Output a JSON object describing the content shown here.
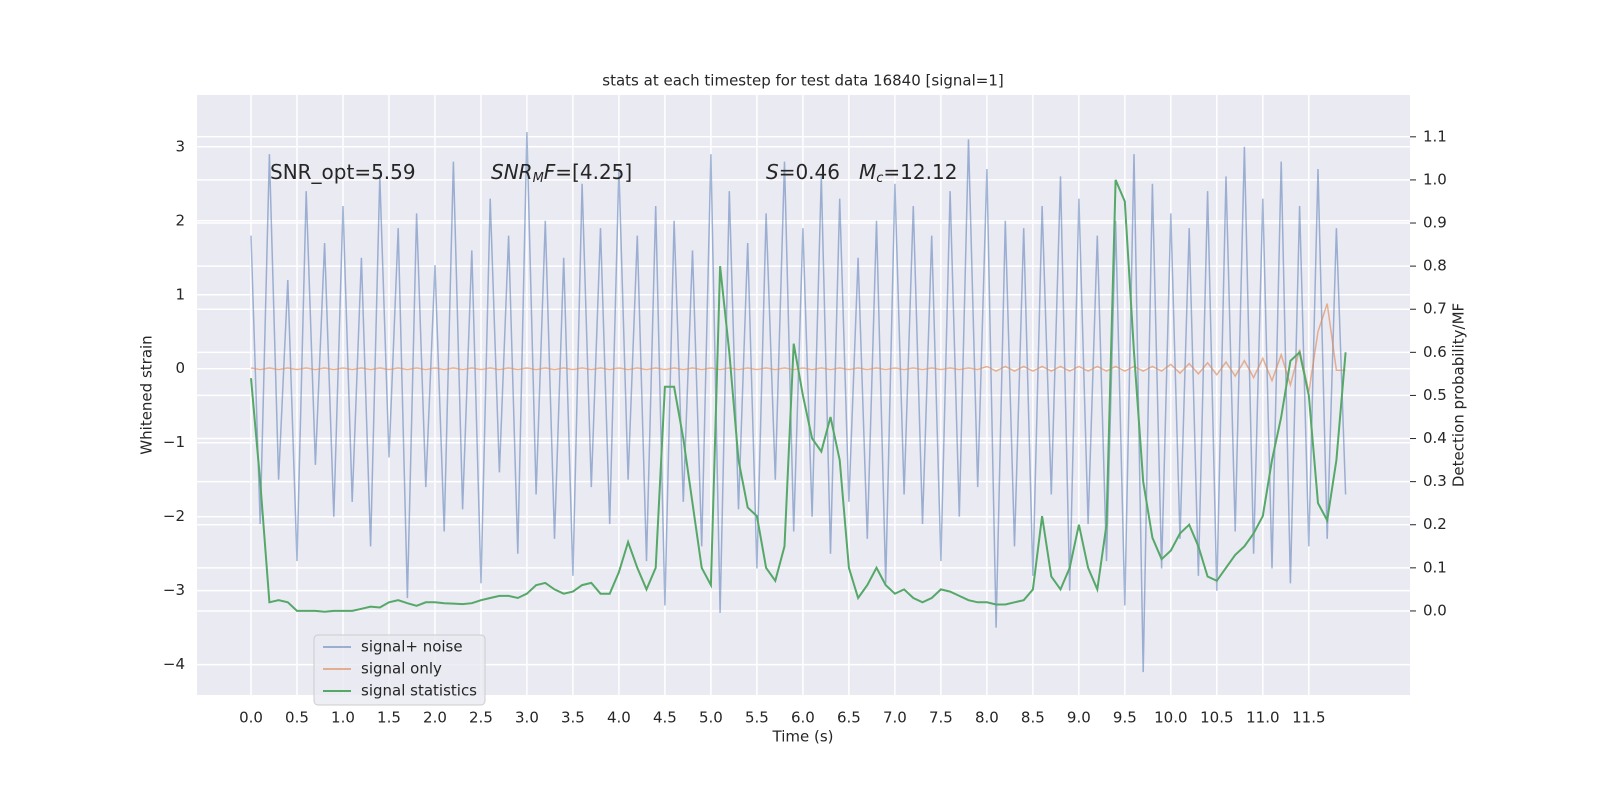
{
  "chart_data": {
    "type": "line",
    "title": "stats at each timestep for test data 16840 [signal=1]",
    "xlabel": "Time (s)",
    "ylabel": "Whitened strain",
    "y2label": "Detection probability/MF",
    "grid": true,
    "legend_loc": "lower left",
    "xlim": [
      -0.587,
      12.6
    ],
    "ylim": [
      -4.41,
      3.7
    ],
    "y2lim": [
      -0.195,
      1.197
    ],
    "xticks": [
      {
        "value": 0,
        "label": "0.0"
      },
      0.5,
      {
        "value": 1,
        "label": "1.0"
      },
      1.5,
      {
        "value": 2,
        "label": "2.0"
      },
      2.5,
      {
        "value": 3,
        "label": "3.0"
      },
      3.5,
      {
        "value": 4,
        "label": "4.0"
      },
      4.5,
      {
        "value": 5,
        "label": "5.0"
      },
      5.5,
      {
        "value": 6,
        "label": "6.0"
      },
      6.5,
      {
        "value": 7,
        "label": "7.0"
      },
      7.5,
      {
        "value": 8,
        "label": "8.0"
      },
      8.5,
      {
        "value": 9,
        "label": "9.0"
      },
      9.5,
      {
        "value": 10,
        "label": "10.0"
      },
      10.5,
      {
        "value": 11,
        "label": "11.0"
      },
      11.5
    ],
    "yticks": [
      {
        "value": -4,
        "label": "−4"
      },
      {
        "value": -3,
        "label": "−3"
      },
      {
        "value": -2,
        "label": "−2"
      },
      {
        "value": -1,
        "label": "−1"
      },
      0,
      1,
      2,
      3
    ],
    "y2ticks": [
      {
        "value": 0,
        "label": "0.0"
      },
      0.1,
      0.2,
      0.3,
      0.4,
      0.5,
      0.6,
      0.7,
      0.8,
      0.9,
      {
        "value": 1,
        "label": "1.0"
      },
      1.1
    ],
    "annotations": [
      [
        {
          "text": "SNR_opt=5.59",
          "style": "normal"
        }
      ],
      [
        {
          "text": "SNR",
          "style": "italic"
        },
        {
          "text": "M",
          "style": "italic-sub"
        },
        {
          "text": "F",
          "style": "italic"
        },
        {
          "text": "=[4.25]",
          "style": "normal"
        }
      ],
      [
        {
          "text": "S",
          "style": "italic"
        },
        {
          "text": "=0.46",
          "style": "normal"
        }
      ],
      [
        {
          "text": "M",
          "style": "italic"
        },
        {
          "text": "c",
          "style": "italic-sub"
        },
        {
          "text": "=12.12",
          "style": "normal"
        }
      ]
    ],
    "x": [
      0.0,
      0.1,
      0.2,
      0.3,
      0.4,
      0.5,
      0.6,
      0.7,
      0.8,
      0.9,
      1.0,
      1.1,
      1.2,
      1.3,
      1.4,
      1.5,
      1.6,
      1.7,
      1.8,
      1.9,
      2.0,
      2.1,
      2.2,
      2.3,
      2.4,
      2.5,
      2.6,
      2.7,
      2.8,
      2.9,
      3.0,
      3.1,
      3.2,
      3.3,
      3.4,
      3.5,
      3.6,
      3.7,
      3.8,
      3.9,
      4.0,
      4.1,
      4.2,
      4.3,
      4.4,
      4.5,
      4.6,
      4.7,
      4.8,
      4.9,
      5.0,
      5.1,
      5.2,
      5.3,
      5.4,
      5.5,
      5.6,
      5.7,
      5.8,
      5.9,
      6.0,
      6.1,
      6.2,
      6.3,
      6.4,
      6.5,
      6.6,
      6.7,
      6.8,
      6.9,
      7.0,
      7.1,
      7.2,
      7.3,
      7.4,
      7.5,
      7.6,
      7.7,
      7.8,
      7.9,
      8.0,
      8.1,
      8.2,
      8.3,
      8.4,
      8.5,
      8.6,
      8.7,
      8.8,
      8.9,
      9.0,
      9.1,
      9.2,
      9.3,
      9.4,
      9.5,
      9.6,
      9.7,
      9.8,
      9.9,
      10.0,
      10.1,
      10.2,
      10.3,
      10.4,
      10.5,
      10.6,
      10.7,
      10.8,
      10.9,
      11.0,
      11.1,
      11.2,
      11.3,
      11.4,
      11.5,
      11.6,
      11.7,
      11.8,
      11.9
    ],
    "series": [
      {
        "name": "signal+ noise",
        "color": "#4c72b0",
        "opacity": 0.5,
        "axis": "y",
        "values": [
          1.8,
          -2.1,
          2.9,
          -1.5,
          1.2,
          -2.6,
          2.4,
          -1.3,
          1.7,
          -2.0,
          2.2,
          -1.8,
          1.5,
          -2.4,
          2.6,
          -1.2,
          1.9,
          -3.1,
          2.1,
          -1.6,
          1.4,
          -2.2,
          2.8,
          -1.9,
          1.6,
          -2.9,
          2.3,
          -1.4,
          1.8,
          -2.5,
          3.2,
          -1.7,
          2.0,
          -2.3,
          1.5,
          -2.8,
          2.5,
          -1.6,
          1.9,
          -2.1,
          2.7,
          -1.5,
          1.8,
          -2.6,
          2.2,
          -3.2,
          2.0,
          -1.8,
          1.6,
          -2.4,
          2.9,
          -3.3,
          2.4,
          -1.9,
          1.7,
          -2.7,
          2.1,
          -1.5,
          2.8,
          -2.2,
          1.9,
          -2.0,
          2.6,
          -2.5,
          2.3,
          -1.8,
          1.5,
          -2.3,
          2.0,
          -2.9,
          2.5,
          -1.7,
          2.2,
          -2.1,
          1.8,
          -2.6,
          2.4,
          -2.0,
          3.1,
          -1.6,
          2.7,
          -3.5,
          2.0,
          -2.4,
          1.9,
          -2.8,
          2.2,
          -1.7,
          2.6,
          -3.0,
          2.3,
          -2.1,
          1.8,
          -2.6,
          2.0,
          -3.2,
          2.9,
          -4.1,
          2.5,
          -2.7,
          2.1,
          -2.3,
          1.9,
          -2.8,
          2.4,
          -3.0,
          2.6,
          -2.2,
          3.0,
          -2.5,
          2.3,
          -2.7,
          2.8,
          -2.9,
          2.2,
          -2.4,
          2.7,
          -2.3,
          1.9,
          -1.7
        ]
      },
      {
        "name": "signal only",
        "color": "#dd8452",
        "opacity": 0.6,
        "axis": "y",
        "values": [
          0.01,
          -0.01,
          0.01,
          -0.01,
          0.01,
          -0.01,
          0.01,
          -0.01,
          0.01,
          -0.01,
          0.01,
          -0.01,
          0.01,
          -0.01,
          0.01,
          -0.01,
          0.01,
          -0.01,
          0.01,
          -0.01,
          0.01,
          -0.01,
          0.01,
          -0.01,
          0.01,
          -0.01,
          0.01,
          -0.01,
          0.01,
          -0.01,
          0.01,
          -0.01,
          0.01,
          -0.01,
          0.01,
          -0.01,
          0.01,
          -0.01,
          0.01,
          -0.01,
          0.01,
          -0.01,
          0.01,
          -0.01,
          0.01,
          -0.01,
          0.01,
          -0.01,
          0.01,
          -0.01,
          0.01,
          -0.01,
          0.01,
          -0.01,
          0.01,
          -0.01,
          0.01,
          -0.01,
          0.01,
          -0.01,
          0.01,
          -0.01,
          0.01,
          -0.01,
          0.01,
          -0.01,
          0.01,
          -0.01,
          0.01,
          -0.01,
          0.01,
          -0.01,
          0.01,
          -0.01,
          0.01,
          -0.01,
          0.01,
          -0.01,
          0.01,
          -0.01,
          0.03,
          -0.03,
          0.03,
          -0.03,
          0.03,
          -0.03,
          0.03,
          -0.03,
          0.03,
          -0.03,
          0.03,
          -0.03,
          0.03,
          -0.03,
          0.03,
          -0.03,
          0.03,
          -0.03,
          0.03,
          -0.03,
          0.06,
          -0.06,
          0.07,
          -0.07,
          0.08,
          -0.08,
          0.09,
          -0.1,
          0.11,
          -0.12,
          0.14,
          -0.16,
          0.19,
          -0.22,
          0.26,
          -0.32,
          0.5,
          0.88,
          -0.02,
          -0.02
        ]
      },
      {
        "name": "signal statistics",
        "color": "#55a868",
        "opacity": 1,
        "axis": "y2",
        "values": [
          0.54,
          0.3,
          0.02,
          0.025,
          0.02,
          0.0,
          0.0,
          0.0,
          -0.002,
          0.0,
          0.0,
          0.0,
          0.005,
          0.01,
          0.008,
          0.02,
          0.025,
          0.018,
          0.012,
          0.02,
          0.02,
          0.018,
          0.017,
          0.016,
          0.018,
          0.025,
          0.03,
          0.035,
          0.035,
          0.03,
          0.04,
          0.06,
          0.065,
          0.05,
          0.04,
          0.045,
          0.06,
          0.065,
          0.04,
          0.04,
          0.09,
          0.16,
          0.1,
          0.05,
          0.1,
          0.52,
          0.52,
          0.4,
          0.25,
          0.1,
          0.06,
          0.8,
          0.6,
          0.35,
          0.24,
          0.22,
          0.1,
          0.07,
          0.15,
          0.62,
          0.5,
          0.4,
          0.37,
          0.45,
          0.35,
          0.1,
          0.03,
          0.06,
          0.1,
          0.06,
          0.04,
          0.05,
          0.03,
          0.02,
          0.03,
          0.05,
          0.045,
          0.035,
          0.025,
          0.02,
          0.02,
          0.015,
          0.015,
          0.02,
          0.025,
          0.05,
          0.22,
          0.08,
          0.05,
          0.1,
          0.2,
          0.1,
          0.05,
          0.2,
          1.0,
          0.95,
          0.6,
          0.3,
          0.17,
          0.12,
          0.14,
          0.18,
          0.2,
          0.15,
          0.08,
          0.07,
          0.1,
          0.13,
          0.15,
          0.18,
          0.22,
          0.35,
          0.45,
          0.58,
          0.6,
          0.5,
          0.25,
          0.21,
          0.35,
          0.6
        ]
      }
    ]
  }
}
